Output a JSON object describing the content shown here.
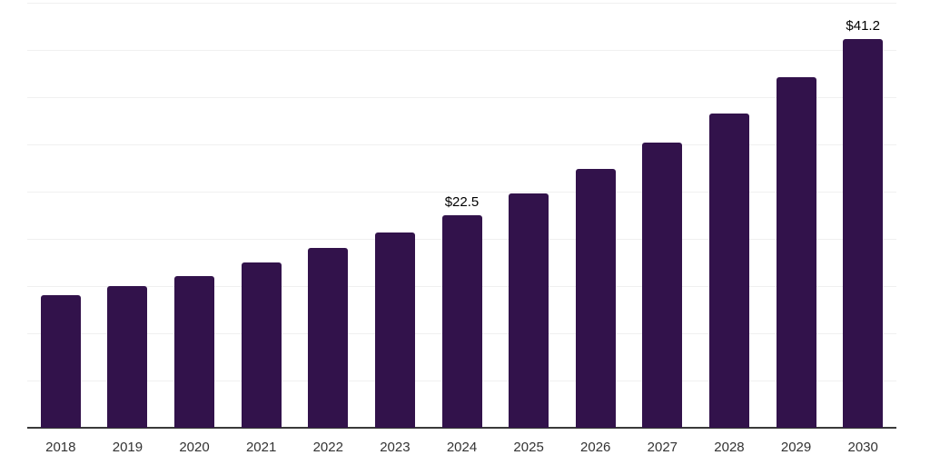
{
  "chart": {
    "background_color": "#ffffff",
    "bar_color": "#32124B",
    "axis_line_color": "#3a3a3a",
    "gridline_color": "#f0f0f0",
    "tick_label_color": "#333333",
    "data_label_color": "#000000"
  },
  "chart_data": {
    "type": "bar",
    "title": "",
    "xlabel": "",
    "ylabel": "",
    "categories": [
      "2018",
      "2019",
      "2020",
      "2021",
      "2022",
      "2023",
      "2024",
      "2025",
      "2026",
      "2027",
      "2028",
      "2029",
      "2030"
    ],
    "values": [
      14.0,
      15.0,
      16.1,
      17.5,
      19.0,
      20.7,
      22.5,
      24.8,
      27.4,
      30.2,
      33.3,
      37.1,
      41.2
    ],
    "data_labels": {
      "2024": "$22.5",
      "2030": "$41.2"
    },
    "ylim": [
      0,
      45
    ],
    "grid": true,
    "grid_step": 5,
    "y_axis_labels_visible": false,
    "legend_position": "none"
  }
}
